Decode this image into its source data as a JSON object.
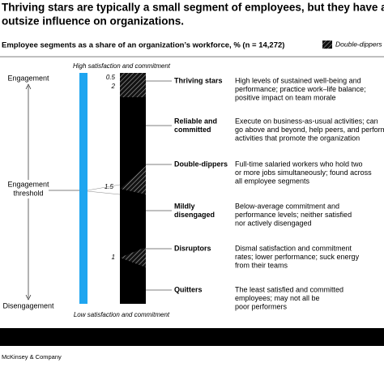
{
  "header": {
    "title_lines": [
      "Thriving stars are typically a small segment of employees, but they have an",
      "outsize influence on organizations."
    ],
    "subtitle": "Employee segments as a share of an organization’s workforce, % (n = 14,272)",
    "legend": "Double-dippers"
  },
  "axis": {
    "top": "Engagement",
    "middle_lines": [
      "Engagement",
      "threshold"
    ],
    "bottom": "Disengagement",
    "bar_top": "High satisfaction and commitment",
    "bar_bottom": "Low satisfaction and commitment"
  },
  "double_dipper_labels": [
    0.5,
    2,
    1.5,
    1
  ],
  "segments": [
    {
      "name_lines": [
        "Thriving stars"
      ],
      "description_lines": [
        "High levels of sustained well-being and",
        "performance; practice work–life balance;",
        "positive impact on team morale"
      ]
    },
    {
      "name_lines": [
        "Reliable and",
        "committed"
      ],
      "description_lines": [
        "Execute on business-as-usual activities; can",
        "go above and beyond, help peers, and perform",
        "activities that promote the organization"
      ]
    },
    {
      "name_lines": [
        "Double-dippers"
      ],
      "description_lines": [
        "Full-time salaried workers who hold two",
        "or more jobs simultaneously; found across",
        "all employee segments"
      ]
    },
    {
      "name_lines": [
        "Mildly",
        "disengaged"
      ],
      "description_lines": [
        "Below-average commitment and",
        "performance levels; neither satisfied",
        "nor actively disengaged"
      ]
    },
    {
      "name_lines": [
        "Disruptors"
      ],
      "description_lines": [
        "Dismal satisfaction and commitment",
        "rates; lower performance; suck energy",
        "from their teams"
      ]
    },
    {
      "name_lines": [
        "Quitters"
      ],
      "description_lines": [
        "The least satisfied and committed",
        "employees; may not all be",
        "poor performers"
      ]
    }
  ],
  "footer": {
    "source": "McKinsey & Company"
  }
}
